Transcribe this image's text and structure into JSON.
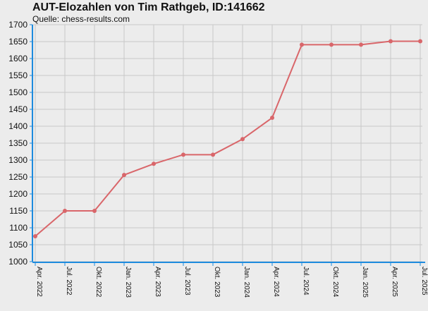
{
  "chart_data": {
    "type": "line",
    "title": "AUT-Elozahlen von Tim Rathgeb, ID:141662",
    "subtitle": "Quelle: chess-results.com",
    "xlabel": "",
    "ylabel": "",
    "categories": [
      "Apr. 2022",
      "Jul. 2022",
      "Okt. 2022",
      "Jan. 2023",
      "Apr. 2023",
      "Jul. 2023",
      "Okt. 2023",
      "Jan. 2024",
      "Apr. 2024",
      "Jul. 2024",
      "Okt. 2024",
      "Jan. 2025",
      "Apr. 2025",
      "Jul. 2025"
    ],
    "series": [
      {
        "values": [
          1075,
          1150,
          1150,
          1256,
          1289,
          1316,
          1316,
          1362,
          1425,
          1641,
          1641,
          1641,
          1651,
          1651
        ]
      }
    ],
    "ylim": [
      1000,
      1700
    ],
    "yticks": [
      1000,
      1050,
      1100,
      1150,
      1200,
      1250,
      1300,
      1350,
      1400,
      1450,
      1500,
      1550,
      1600,
      1650,
      1700
    ],
    "grid": true,
    "legend": "none",
    "colors": {
      "line": "#d9666a",
      "axis": "#1e8bde",
      "grid": "#c8c8c8",
      "background": "#ececec"
    }
  }
}
